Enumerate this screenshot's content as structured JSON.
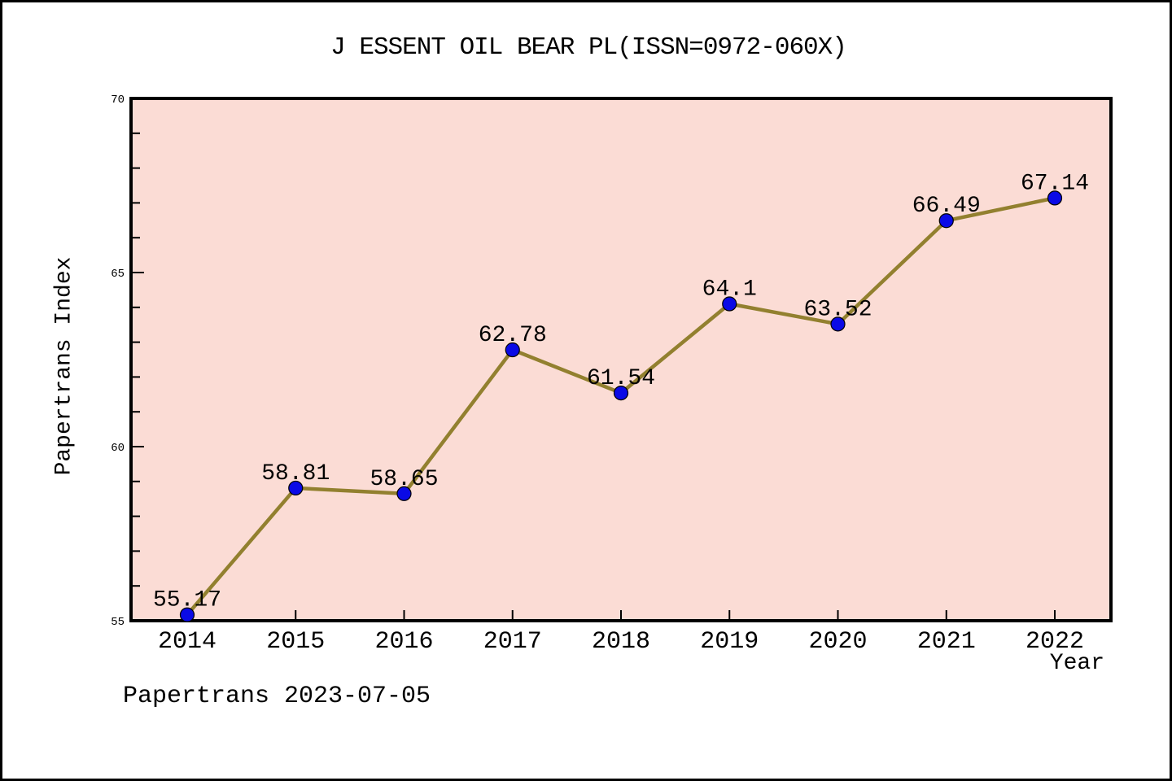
{
  "chart_data": {
    "type": "line",
    "title": "J ESSENT OIL BEAR PL(ISSN=0972-060X)",
    "xlabel": "Year",
    "ylabel": "Papertrans Index",
    "x": [
      2014,
      2015,
      2016,
      2017,
      2018,
      2019,
      2020,
      2021,
      2022
    ],
    "values": [
      55.17,
      58.81,
      58.65,
      62.78,
      61.54,
      64.1,
      63.52,
      66.49,
      67.14
    ],
    "point_labels": [
      "55.17",
      "58.81",
      "58.65",
      "62.78",
      "61.54",
      "64.1",
      "63.52",
      "66.49",
      "67.14"
    ],
    "ylim": [
      55,
      70
    ],
    "yticks_major": [
      55,
      60,
      65,
      70
    ],
    "ytick_minor_step": 1,
    "grid": false,
    "legend_position": "none",
    "colors": {
      "plot_background": "#fbdcd5",
      "line": "#92802f",
      "marker_fill": "#0a0ae6",
      "marker_edge": "#000000",
      "axis": "#000000",
      "text": "#000000",
      "page_background": "#ffffff",
      "outer_border": "#000000"
    }
  },
  "footer": {
    "text": "Papertrans 2023-07-05"
  }
}
